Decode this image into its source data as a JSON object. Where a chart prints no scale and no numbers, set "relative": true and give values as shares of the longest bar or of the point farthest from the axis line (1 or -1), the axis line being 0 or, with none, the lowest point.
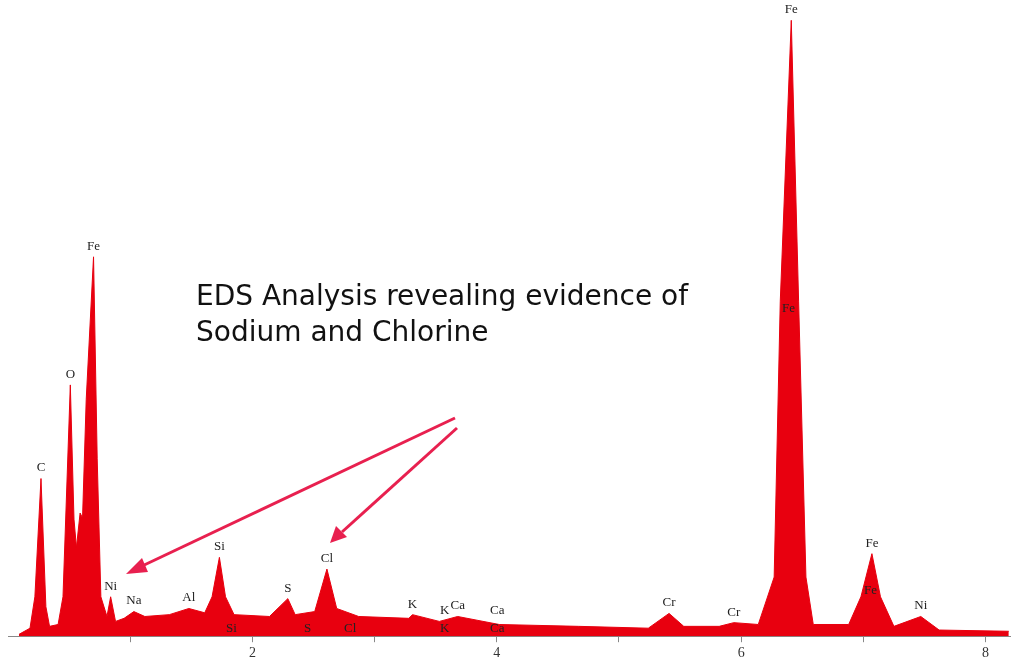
{
  "chart_data": {
    "type": "area",
    "relative": true,
    "color": "#e8000f",
    "xlim": [
      0,
      8.2
    ],
    "xticks": [
      {
        "value": 1,
        "label": null
      },
      2,
      {
        "value": 3,
        "label": null
      },
      4,
      {
        "value": 5,
        "label": null
      },
      6,
      {
        "value": 7,
        "label": null
      },
      8
    ],
    "x": [
      0.09,
      0.18,
      0.22,
      0.27,
      0.31,
      0.34,
      0.41,
      0.45,
      0.51,
      0.54,
      0.56,
      0.59,
      0.61,
      0.64,
      0.7,
      0.73,
      0.76,
      0.81,
      0.84,
      0.88,
      0.95,
      1.03,
      1.12,
      1.32,
      1.48,
      1.61,
      1.67,
      1.73,
      1.78,
      1.85,
      2.14,
      2.29,
      2.35,
      2.51,
      2.61,
      2.69,
      2.87,
      3.28,
      3.31,
      3.53,
      3.68,
      4.02,
      4.67,
      5.24,
      5.41,
      5.53,
      5.82,
      5.94,
      6.14,
      6.27,
      6.32,
      6.41,
      6.47,
      6.53,
      6.59,
      6.88,
      6.98,
      7.07,
      7.14,
      7.25,
      7.47,
      7.62,
      8.19
    ],
    "values": [
      0.003,
      0.013,
      0.064,
      0.256,
      0.048,
      0.016,
      0.019,
      0.064,
      0.408,
      0.19,
      0.144,
      0.2,
      0.192,
      0.384,
      0.616,
      0.288,
      0.064,
      0.032,
      0.064,
      0.024,
      0.029,
      0.04,
      0.032,
      0.035,
      0.045,
      0.038,
      0.064,
      0.128,
      0.064,
      0.035,
      0.032,
      0.061,
      0.035,
      0.04,
      0.109,
      0.045,
      0.032,
      0.029,
      0.035,
      0.024,
      0.032,
      0.019,
      0.016,
      0.013,
      0.037,
      0.016,
      0.016,
      0.022,
      0.019,
      0.096,
      0.544,
      1,
      0.544,
      0.096,
      0.019,
      0.019,
      0.064,
      0.134,
      0.064,
      0.016,
      0.032,
      0.01,
      0.008
    ],
    "annotations": [
      "EDS Analysis revealing evidence of Sodium and Chlorine",
      {
        "text": "C",
        "x": 0.27,
        "y": 0.256
      },
      {
        "text": "O",
        "x": 0.51,
        "y": 0.408
      },
      {
        "text": "Fe",
        "x": 0.7,
        "y": 0.616
      },
      {
        "text": "Ni",
        "x": 0.84,
        "y": 0.064
      },
      {
        "text": "Na",
        "x": 1.03,
        "y": 0.04
      },
      {
        "text": "Al",
        "x": 1.48,
        "y": 0.045
      },
      {
        "text": "Si",
        "x": 1.73,
        "y": 0.128
      },
      {
        "text": "S",
        "x": 2.29,
        "y": 0.061
      },
      {
        "text": "Cl",
        "x": 2.61,
        "y": 0.109
      },
      {
        "text": "K",
        "x": 3.31,
        "y": 0.035
      },
      {
        "text": "Ca",
        "x": 3.68,
        "y": 0.032
      },
      {
        "text": "Cr",
        "x": 5.41,
        "y": 0.037
      },
      {
        "text": "Cr",
        "x": 5.94,
        "y": 0.022
      },
      {
        "text": "Fe",
        "x": 6.41,
        "y": 1
      },
      {
        "text": "Fe",
        "x": 7.07,
        "y": 0.134
      },
      {
        "text": "Ni",
        "x": 7.47,
        "y": 0.032
      },
      "Si",
      "S",
      "Cl",
      "K",
      "Ca",
      "Fe",
      "K",
      "Ca",
      "Fe"
    ]
  }
}
